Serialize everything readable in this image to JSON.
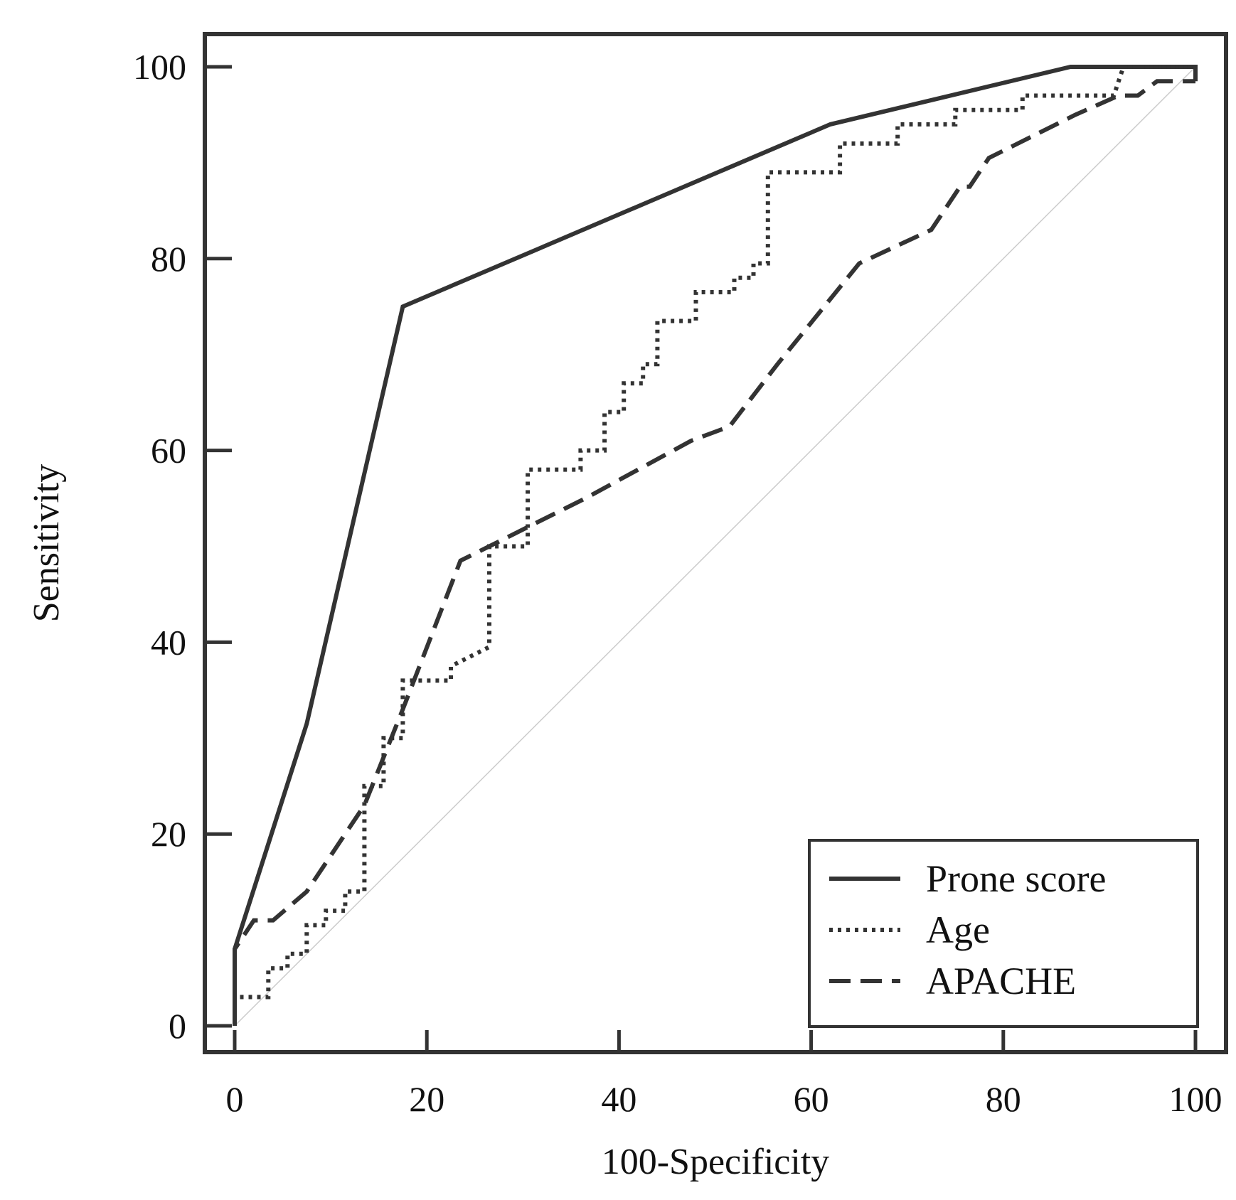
{
  "chart_data": {
    "type": "line",
    "title": "",
    "xlabel": "100-Specificity",
    "ylabel": "Sensitivity",
    "xlim": [
      0,
      100
    ],
    "ylim": [
      0,
      100
    ],
    "xticks": [
      "0",
      "20",
      "40",
      "60",
      "80",
      "100"
    ],
    "yticks": [
      "0",
      "20",
      "40",
      "60",
      "80",
      "100"
    ],
    "grid": false,
    "legend_position": "bottom-right",
    "diagonal_reference": {
      "from": [
        0,
        0
      ],
      "to": [
        100,
        100
      ],
      "color": "#cccccc"
    },
    "series": [
      {
        "name": "Prone score",
        "style": "solid",
        "color": "#333333",
        "x": [
          0,
          0,
          7.5,
          17.5,
          62,
          87,
          100,
          100
        ],
        "y": [
          0,
          8,
          31.5,
          75,
          94,
          100,
          100,
          98.5
        ]
      },
      {
        "name": "Age",
        "style": "dotted",
        "color": "#333333",
        "x": [
          0,
          0,
          3.5,
          3.5,
          5.5,
          5.5,
          7.5,
          7.5,
          9.5,
          9.5,
          11.5,
          11.5,
          13.5,
          13.5,
          15.5,
          15.5,
          17.5,
          17.5,
          19.5,
          22.5,
          22.5,
          26.5,
          26.5,
          30.5,
          30.5,
          36,
          36,
          38.5,
          38.5,
          40.5,
          40.5,
          42.5,
          42.5,
          44,
          44,
          48,
          48,
          52,
          52,
          54,
          54,
          55.5,
          55.5,
          63,
          63,
          69,
          69,
          75,
          75,
          82,
          82,
          91.5,
          92.5,
          100
        ],
        "y": [
          0,
          3,
          3,
          6,
          6,
          7.5,
          7.5,
          10.5,
          10.5,
          12,
          12,
          14,
          14,
          25,
          25,
          30,
          30,
          36,
          36,
          36,
          37.5,
          39.5,
          50,
          50,
          58,
          58,
          60,
          60,
          64,
          64,
          67,
          67,
          69,
          69,
          73.5,
          73.5,
          76.5,
          76.5,
          78,
          78,
          79.5,
          79.5,
          89,
          89,
          92,
          92,
          94,
          94,
          95.5,
          95.5,
          97,
          97,
          100,
          100
        ]
      },
      {
        "name": "APACHE",
        "style": "dashed",
        "color": "#333333",
        "x": [
          0,
          0,
          2,
          4,
          7.5,
          13.5,
          17.5,
          23.5,
          36.5,
          47.5,
          51.5,
          56.5,
          65,
          72.5,
          75.5,
          76.5,
          78.5,
          87.5,
          92,
          94,
          96,
          100
        ],
        "y": [
          0,
          8,
          11,
          11,
          14,
          23,
          33,
          48.5,
          55,
          61,
          62.5,
          69,
          79.5,
          83,
          87.5,
          87.5,
          90.5,
          95,
          97,
          97,
          98.5,
          98.5
        ]
      }
    ]
  }
}
